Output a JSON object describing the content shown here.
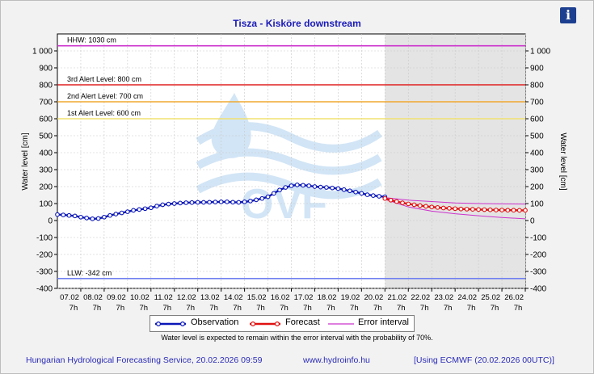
{
  "chart_data": {
    "type": "line",
    "title": "Tisza - Kisköre downstream",
    "ylabel": "Water level [cm]",
    "ylim": [
      -400,
      1100
    ],
    "yticks": [
      -400,
      -300,
      -200,
      -100,
      0,
      100,
      200,
      300,
      400,
      500,
      600,
      700,
      800,
      900,
      1000
    ],
    "ytick_labels": [
      "-400",
      "-300",
      "-200",
      "-100",
      "0",
      "100",
      "200",
      "300",
      "400",
      "500",
      "600",
      "700",
      "800",
      "900",
      "1 000"
    ],
    "x_day_range": [
      6.2,
      26.2
    ],
    "forecast_start_day": 20.2,
    "xticks": [
      {
        "day": 7.2,
        "label": "07.02",
        "hour": "7h"
      },
      {
        "day": 8.2,
        "label": "08.02",
        "hour": "7h"
      },
      {
        "day": 9.2,
        "label": "09.02",
        "hour": "7h"
      },
      {
        "day": 10.2,
        "label": "10.02",
        "hour": "7h"
      },
      {
        "day": 11.2,
        "label": "11.02",
        "hour": "7h"
      },
      {
        "day": 12.2,
        "label": "12.02",
        "hour": "7h"
      },
      {
        "day": 13.2,
        "label": "13.02",
        "hour": "7h"
      },
      {
        "day": 14.2,
        "label": "14.02",
        "hour": "7h"
      },
      {
        "day": 15.2,
        "label": "15.02",
        "hour": "7h"
      },
      {
        "day": 16.2,
        "label": "16.02",
        "hour": "7h"
      },
      {
        "day": 17.2,
        "label": "17.02",
        "hour": "7h"
      },
      {
        "day": 18.2,
        "label": "18.02",
        "hour": "7h"
      },
      {
        "day": 19.2,
        "label": "19.02",
        "hour": "7h"
      },
      {
        "day": 20.2,
        "label": "20.02",
        "hour": "7h"
      },
      {
        "day": 21.2,
        "label": "21.02",
        "hour": "7h"
      },
      {
        "day": 22.2,
        "label": "22.02",
        "hour": "7h"
      },
      {
        "day": 23.2,
        "label": "23.02",
        "hour": "7h"
      },
      {
        "day": 24.2,
        "label": "24.02",
        "hour": "7h"
      },
      {
        "day": 25.2,
        "label": "25.02",
        "hour": "7h"
      },
      {
        "day": 26.2,
        "label": "26.02",
        "hour": "7h"
      }
    ],
    "reference_lines": [
      {
        "label": "HHW: 1030 cm",
        "value": 1030,
        "color": "#cc33cc"
      },
      {
        "label": "3rd Alert Level: 800 cm",
        "value": 800,
        "color": "#e02020"
      },
      {
        "label": "2nd Alert Level: 700 cm",
        "value": 700,
        "color": "#f0a830"
      },
      {
        "label": "1st Alert Level: 600 cm",
        "value": 600,
        "color": "#f0e070"
      },
      {
        "label": "LLW: -342 cm",
        "value": -342,
        "color": "#6f7ff0"
      }
    ],
    "series": [
      {
        "name": "Observation",
        "color": "#0a16b8",
        "x": [
          6.2,
          6.45,
          6.7,
          6.95,
          7.2,
          7.45,
          7.7,
          7.95,
          8.2,
          8.45,
          8.7,
          8.95,
          9.2,
          9.45,
          9.7,
          9.95,
          10.2,
          10.45,
          10.7,
          10.95,
          11.2,
          11.45,
          11.7,
          11.95,
          12.2,
          12.45,
          12.7,
          12.95,
          13.2,
          13.45,
          13.7,
          13.95,
          14.2,
          14.45,
          14.7,
          14.95,
          15.2,
          15.45,
          15.7,
          15.95,
          16.2,
          16.45,
          16.7,
          16.95,
          17.2,
          17.45,
          17.7,
          17.95,
          18.2,
          18.45,
          18.7,
          18.95,
          19.2,
          19.45,
          19.7,
          19.95,
          20.2
        ],
        "y": [
          35,
          33,
          30,
          27,
          20,
          15,
          10,
          12,
          20,
          30,
          38,
          45,
          52,
          60,
          65,
          70,
          75,
          85,
          93,
          97,
          100,
          103,
          105,
          106,
          107,
          107,
          108,
          109,
          110,
          110,
          108,
          107,
          110,
          115,
          122,
          130,
          140,
          160,
          180,
          195,
          205,
          210,
          208,
          205,
          200,
          197,
          195,
          192,
          188,
          182,
          175,
          168,
          160,
          152,
          147,
          143,
          140
        ]
      },
      {
        "name": "Forecast",
        "color": "#e01010",
        "x": [
          20.2,
          20.45,
          20.7,
          20.95,
          21.2,
          21.45,
          21.7,
          21.95,
          22.2,
          22.45,
          22.7,
          22.95,
          23.2,
          23.45,
          23.7,
          23.95,
          24.2,
          24.45,
          24.7,
          24.95,
          25.2,
          25.45,
          25.7,
          25.95,
          26.2
        ],
        "y": [
          130,
          120,
          112,
          104,
          98,
          93,
          88,
          84,
          80,
          77,
          74,
          72,
          70,
          68,
          67,
          66,
          65,
          64,
          63,
          62,
          62,
          61,
          61,
          60,
          60
        ]
      },
      {
        "name": "Error interval",
        "color": "#cc33cc",
        "upper_x": [
          20.2,
          21.2,
          22.2,
          23.2,
          24.2,
          25.2,
          26.2
        ],
        "upper_y": [
          135,
          120,
          112,
          104,
          100,
          98,
          97
        ],
        "lower_x": [
          20.2,
          21.2,
          22.2,
          23.2,
          24.2,
          25.2,
          26.2
        ],
        "lower_y": [
          125,
          80,
          55,
          40,
          28,
          18,
          10
        ]
      }
    ],
    "legend": {
      "placement": "bottom",
      "items": [
        "Observation",
        "Forecast",
        "Error interval"
      ]
    }
  },
  "note": "Water level is expected to remain within the error interval with the probability of 70%.",
  "footer": {
    "service": "Hungarian Hydrological Forecasting Service, 20.02.2026 09:59",
    "website": "www.hydroinfo.hu",
    "model": "[Using ECMWF (20.02.2026  00UTC)]"
  },
  "info_icon": "i",
  "colors": {
    "title": "#1a1ab8",
    "forecast_background": "#e4e4e4",
    "plot_background": "#ffffff"
  }
}
